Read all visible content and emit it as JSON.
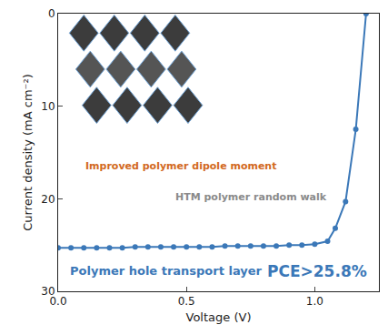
{
  "chart_data": {
    "type": "line",
    "x_label": "Voltage (V)",
    "y_label": "Current density (mA cm⁻²)",
    "series": [
      {
        "name": "Polymer hole transport layer",
        "color": "#3b78b8",
        "marker": "circle",
        "x": [
          0,
          0.05,
          0.1,
          0.15,
          0.2,
          0.25,
          0.3,
          0.35,
          0.4,
          0.45,
          0.5,
          0.55,
          0.6,
          0.65,
          0.7,
          0.75,
          0.8,
          0.85,
          0.9,
          0.95,
          1.0,
          1.05,
          1.08,
          1.12,
          1.16,
          1.2
        ],
        "values": [
          25.3,
          25.3,
          25.3,
          25.3,
          25.3,
          25.3,
          25.2,
          25.2,
          25.2,
          25.2,
          25.2,
          25.2,
          25.2,
          25.1,
          25.1,
          25.1,
          25.1,
          25.1,
          25.0,
          25.0,
          24.9,
          24.6,
          23.2,
          20.3,
          12.5,
          0
        ]
      }
    ],
    "xlim": [
      0,
      1.25
    ],
    "xticks": [
      {
        "value": 0,
        "label": "0.0"
      },
      {
        "value": 0.5,
        "label": "0.5"
      },
      {
        "value": 1,
        "label": "1.0"
      }
    ],
    "ylim": [
      30,
      0
    ],
    "yticks": [
      0,
      10,
      20,
      30
    ],
    "grid": false,
    "annotations": [
      {
        "text": "Improved polymer dipole moment",
        "color": "#d2691e"
      },
      {
        "text": "HTM polymer random walk",
        "color": "#8a8a8a"
      },
      {
        "text": "Polymer hole transport layer",
        "color": "#3b78b8"
      },
      {
        "text": "PCE>25.8%",
        "color": "#3b78b8"
      }
    ]
  }
}
